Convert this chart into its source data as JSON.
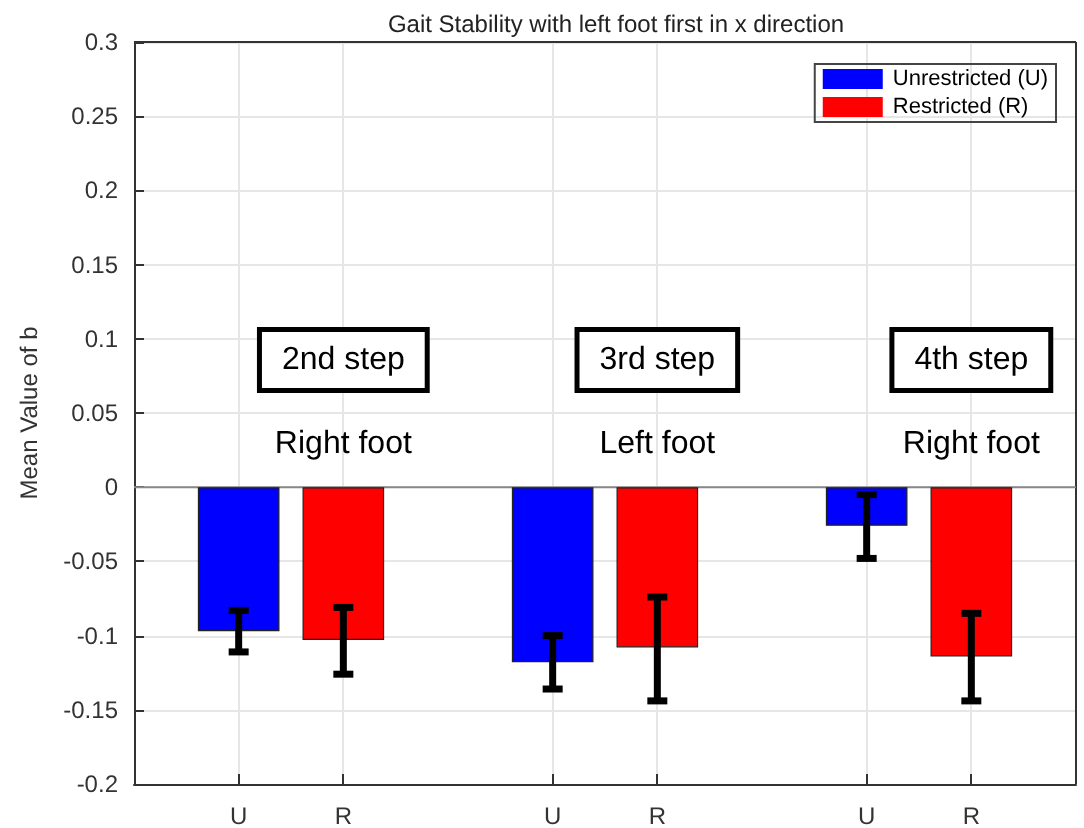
{
  "chart_data": {
    "type": "bar",
    "title": "Gait Stability with left foot first in x direction",
    "ylabel": "Mean Value of b",
    "categories": [
      null,
      "U",
      "R",
      null,
      "U",
      "R",
      null,
      "U",
      "R",
      null
    ],
    "series": [
      {
        "name": "Unrestricted (U)",
        "color": "#0000ff",
        "values": [
          null,
          -0.097,
          null,
          null,
          -0.118,
          null,
          null,
          -0.026,
          null,
          null
        ],
        "errors": [
          null,
          [
            -0.111,
            -0.083
          ],
          null,
          null,
          [
            -0.136,
            -0.1
          ],
          null,
          null,
          [
            -0.048,
            -0.005
          ],
          null,
          null
        ]
      },
      {
        "name": "Restricted (R)",
        "color": "#ff0000",
        "values": [
          null,
          null,
          -0.103,
          null,
          null,
          -0.108,
          null,
          null,
          -0.114,
          null
        ],
        "errors": [
          null,
          null,
          [
            -0.126,
            -0.081
          ],
          null,
          null,
          [
            -0.144,
            -0.074
          ],
          null,
          null,
          [
            -0.144,
            -0.085
          ],
          null
        ]
      }
    ],
    "ylim": [
      -0.2,
      0.3
    ],
    "yticks": [
      -0.2,
      -0.15,
      -0.1,
      -0.05,
      0,
      0.05,
      0.1,
      0.15,
      0.2,
      0.25,
      0.3
    ],
    "grid": true,
    "legend": "top right",
    "annotations": [
      "2nd step",
      "Right foot",
      "3rd step",
      "Left foot",
      "4th step",
      "Right foot"
    ]
  }
}
